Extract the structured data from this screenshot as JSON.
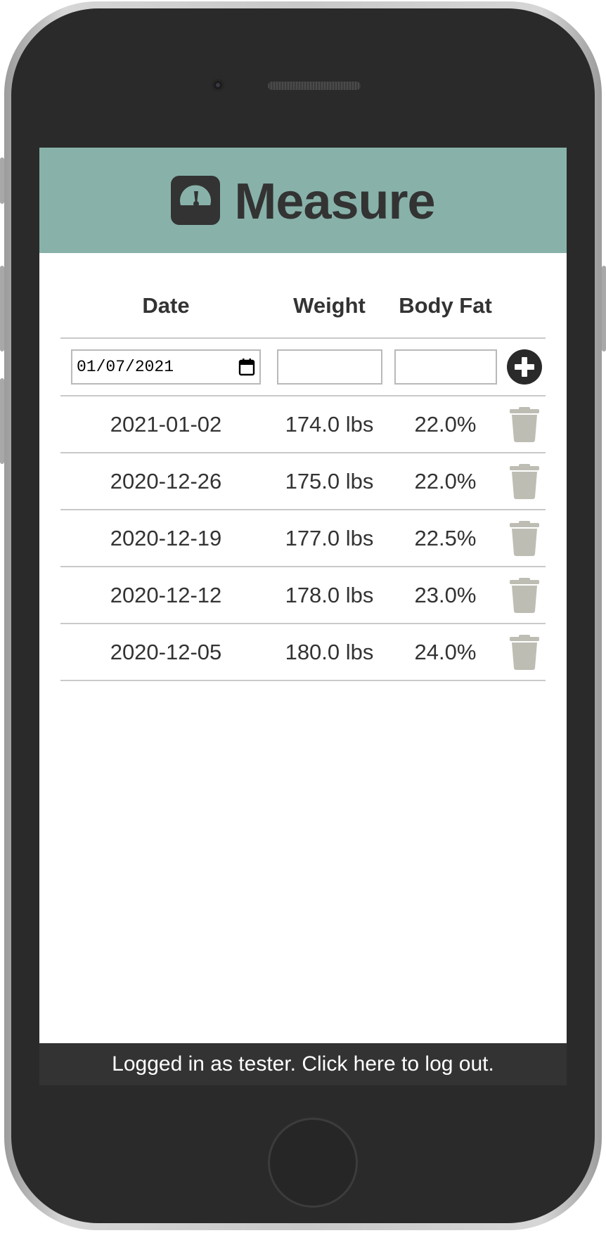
{
  "app": {
    "title": "Measure",
    "icon": "weight-scale-icon",
    "header_color": "#88b2a9",
    "text_color": "#333333"
  },
  "table": {
    "headers": {
      "date": "Date",
      "weight": "Weight",
      "body_fat": "Body Fat"
    },
    "form": {
      "date_value": "01/07/2021",
      "weight_value": "",
      "body_fat_value": "",
      "add_icon": "plus-circle-icon"
    },
    "rows": [
      {
        "date": "2021-01-02",
        "weight": "174.0 lbs",
        "body_fat": "22.0%"
      },
      {
        "date": "2020-12-26",
        "weight": "175.0 lbs",
        "body_fat": "22.0%"
      },
      {
        "date": "2020-12-19",
        "weight": "177.0 lbs",
        "body_fat": "22.5%"
      },
      {
        "date": "2020-12-12",
        "weight": "178.0 lbs",
        "body_fat": "23.0%"
      },
      {
        "date": "2020-12-05",
        "weight": "180.0 lbs",
        "body_fat": "24.0%"
      }
    ],
    "delete_icon": "trash-icon",
    "delete_icon_color": "#bdbdb4"
  },
  "footer": {
    "text": "Logged in as tester. Click here to log out.",
    "background": "#333333"
  }
}
